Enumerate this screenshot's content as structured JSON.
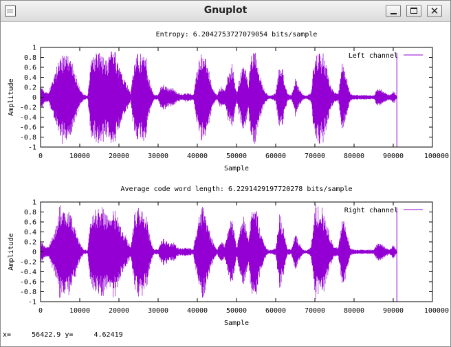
{
  "window": {
    "title": "Gnuplot",
    "controls": {
      "minimize": "minimize",
      "maximize": "maximize",
      "close": "✕"
    }
  },
  "status": {
    "x_label": "x=",
    "x_value": "56422.9",
    "y_label": "y=",
    "y_value": "4.62419"
  },
  "colors": {
    "series": "#9400d3",
    "axis": "#000000",
    "background": "#ffffff"
  },
  "chart_data": [
    {
      "type": "line",
      "title": "Entropy: 6.2042753727079054 bits/sample",
      "xlabel": "Sample",
      "ylabel": "Amplitude",
      "xlim": [
        0,
        100000
      ],
      "ylim": [
        -1,
        1
      ],
      "xticks": [
        "0",
        "10000",
        "20000",
        "30000",
        "40000",
        "50000",
        "60000",
        "70000",
        "80000",
        "90000",
        "100000"
      ],
      "yticks": [
        "1",
        "0.8",
        "0.6",
        "0.4",
        "0.2",
        "0",
        "-0.2",
        "-0.4",
        "-0.6",
        "-0.8",
        "-1"
      ],
      "legend": "top-right",
      "series": [
        {
          "name": "Left channel",
          "x": [
            0,
            1000,
            2000,
            3000,
            4000,
            5000,
            6000,
            7000,
            8000,
            9000,
            10000,
            11000,
            12000,
            13000,
            14000,
            15000,
            16000,
            17000,
            18000,
            19000,
            20000,
            21000,
            22000,
            23000,
            24000,
            25000,
            26000,
            27000,
            28000,
            29000,
            30000,
            31000,
            32000,
            33000,
            34000,
            35000,
            36000,
            37000,
            38000,
            39000,
            40000,
            41000,
            42000,
            43000,
            44000,
            45000,
            46000,
            47000,
            48000,
            49000,
            50000,
            51000,
            52000,
            53000,
            54000,
            55000,
            56000,
            57000,
            58000,
            59000,
            60000,
            61000,
            62000,
            63000,
            64000,
            65000,
            66000,
            67000,
            68000,
            69000,
            70000,
            71000,
            72000,
            73000,
            74000,
            75000,
            76000,
            77000,
            78000,
            79000,
            80000,
            81000,
            82000,
            83000,
            84000,
            85000,
            86000,
            87000,
            88000,
            89000,
            90000,
            91000
          ],
          "values": [
            0.25,
            0.15,
            0.1,
            0.35,
            0.6,
            1.0,
            1.0,
            0.95,
            0.8,
            0.5,
            0.2,
            0.06,
            0.04,
            0.9,
            0.95,
            1.0,
            0.9,
            0.8,
            1.0,
            0.95,
            0.7,
            0.45,
            0.3,
            0.1,
            0.9,
            1.0,
            0.95,
            0.8,
            0.3,
            0.05,
            0.06,
            0.3,
            0.25,
            0.2,
            0.2,
            0.1,
            0.08,
            0.1,
            0.08,
            0.06,
            0.6,
            1.0,
            1.0,
            0.55,
            0.2,
            0.05,
            0.25,
            0.15,
            0.55,
            0.7,
            0.1,
            0.5,
            0.8,
            0.3,
            1.0,
            1.0,
            0.5,
            0.2,
            0.05,
            0.04,
            0.1,
            0.85,
            0.5,
            0.07,
            0.05,
            0.4,
            0.2,
            0.05,
            0.04,
            0.1,
            1.0,
            1.0,
            0.95,
            0.7,
            0.3,
            0.1,
            0.1,
            0.8,
            0.5,
            0.08,
            0.05,
            0.05,
            0.05,
            0.05,
            0.05,
            0.04,
            0.2,
            0.18,
            0.1,
            0.06,
            0.15,
            0.02
          ]
        }
      ]
    },
    {
      "type": "line",
      "title": "Average code word length: 6.2291429197720278 bits/sample",
      "xlabel": "Sample",
      "ylabel": "Amplitude",
      "xlim": [
        0,
        100000
      ],
      "ylim": [
        -1,
        1
      ],
      "xticks": [
        "0",
        "10000",
        "20000",
        "30000",
        "40000",
        "50000",
        "60000",
        "70000",
        "80000",
        "90000",
        "100000"
      ],
      "yticks": [
        "1",
        "0.8",
        "0.6",
        "0.4",
        "0.2",
        "0",
        "-0.2",
        "-0.4",
        "-0.6",
        "-0.8",
        "-1"
      ],
      "legend": "top-right",
      "series": [
        {
          "name": "Right channel",
          "x": [
            0,
            1000,
            2000,
            3000,
            4000,
            5000,
            6000,
            7000,
            8000,
            9000,
            10000,
            11000,
            12000,
            13000,
            14000,
            15000,
            16000,
            17000,
            18000,
            19000,
            20000,
            21000,
            22000,
            23000,
            24000,
            25000,
            26000,
            27000,
            28000,
            29000,
            30000,
            31000,
            32000,
            33000,
            34000,
            35000,
            36000,
            37000,
            38000,
            39000,
            40000,
            41000,
            42000,
            43000,
            44000,
            45000,
            46000,
            47000,
            48000,
            49000,
            50000,
            51000,
            52000,
            53000,
            54000,
            55000,
            56000,
            57000,
            58000,
            59000,
            60000,
            61000,
            62000,
            63000,
            64000,
            65000,
            66000,
            67000,
            68000,
            69000,
            70000,
            71000,
            72000,
            73000,
            74000,
            75000,
            76000,
            77000,
            78000,
            79000,
            80000,
            81000,
            82000,
            83000,
            84000,
            85000,
            86000,
            87000,
            88000,
            89000,
            90000,
            91000
          ],
          "values": [
            0.25,
            0.15,
            0.1,
            0.35,
            0.6,
            1.0,
            1.0,
            0.95,
            0.8,
            0.5,
            0.2,
            0.06,
            0.04,
            0.9,
            0.95,
            1.0,
            0.9,
            0.8,
            1.0,
            0.95,
            0.7,
            0.45,
            0.3,
            0.1,
            0.9,
            1.0,
            0.95,
            0.8,
            0.3,
            0.05,
            0.06,
            0.3,
            0.25,
            0.2,
            0.2,
            0.1,
            0.08,
            0.1,
            0.08,
            0.06,
            0.6,
            1.0,
            1.0,
            0.55,
            0.2,
            0.05,
            0.25,
            0.15,
            0.55,
            0.7,
            0.1,
            0.5,
            0.8,
            0.3,
            1.0,
            1.0,
            0.5,
            0.2,
            0.05,
            0.04,
            0.1,
            0.85,
            0.5,
            0.07,
            0.05,
            0.4,
            0.2,
            0.05,
            0.04,
            0.1,
            1.0,
            1.0,
            0.95,
            0.7,
            0.3,
            0.1,
            0.1,
            0.8,
            0.5,
            0.08,
            0.05,
            0.05,
            0.05,
            0.05,
            0.05,
            0.04,
            0.2,
            0.18,
            0.1,
            0.06,
            0.15,
            0.02
          ]
        }
      ]
    }
  ]
}
